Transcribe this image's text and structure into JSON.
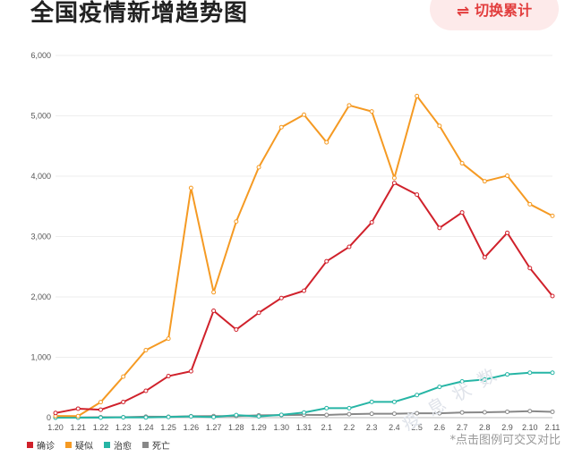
{
  "header": {
    "title": "全国疫情新增趋势图",
    "toggle_label": "切换累计",
    "toggle_icon": "⇌"
  },
  "hint": "*点击图例可交叉对比",
  "watermark": "疫 息 状 数",
  "chart_data": {
    "type": "line",
    "title": "全国疫情新增趋势图",
    "xlabel": "",
    "ylabel": "",
    "ylim": [
      0,
      6000
    ],
    "yticks": [
      0,
      1000,
      2000,
      3000,
      4000,
      5000,
      6000
    ],
    "ytick_labels": [
      "0",
      "1,000",
      "2,000",
      "3,000",
      "4,000",
      "5,000",
      "6,000"
    ],
    "grid": true,
    "legend_position": "bottom-left",
    "categories": [
      "1.20",
      "1.21",
      "1.22",
      "1.23",
      "1.24",
      "1.25",
      "1.26",
      "1.27",
      "1.28",
      "1.29",
      "1.30",
      "1.31",
      "2.1",
      "2.2",
      "2.3",
      "2.4",
      "2.5",
      "2.6",
      "2.7",
      "2.8",
      "2.9",
      "2.10",
      "2.11"
    ],
    "series": [
      {
        "name": "确诊",
        "color": "#d0212b",
        "values": [
          77,
          149,
          131,
          259,
          444,
          688,
          769,
          1771,
          1459,
          1737,
          1982,
          2102,
          2590,
          2829,
          3235,
          3887,
          3694,
          3143,
          3399,
          2656,
          3062,
          2478,
          2015
        ]
      },
      {
        "name": "疑似",
        "color": "#f59a23",
        "values": [
          27,
          26,
          257,
          680,
          1118,
          1309,
          3806,
          2077,
          3248,
          4148,
          4812,
          5019,
          4562,
          5173,
          5072,
          3971,
          5328,
          4833,
          4214,
          3916,
          4008,
          3536,
          3342
        ]
      },
      {
        "name": "治愈",
        "color": "#26b5a5",
        "values": [
          0,
          0,
          0,
          6,
          3,
          11,
          21,
          9,
          43,
          21,
          47,
          85,
          157,
          157,
          262,
          262,
          374,
          510,
          600,
          632,
          716,
          744,
          744
        ]
      },
      {
        "name": "死亡",
        "color": "#888888",
        "values": [
          0,
          3,
          8,
          8,
          16,
          15,
          24,
          26,
          26,
          38,
          43,
          46,
          45,
          57,
          64,
          65,
          73,
          73,
          86,
          89,
          97,
          108,
          97
        ]
      }
    ]
  }
}
